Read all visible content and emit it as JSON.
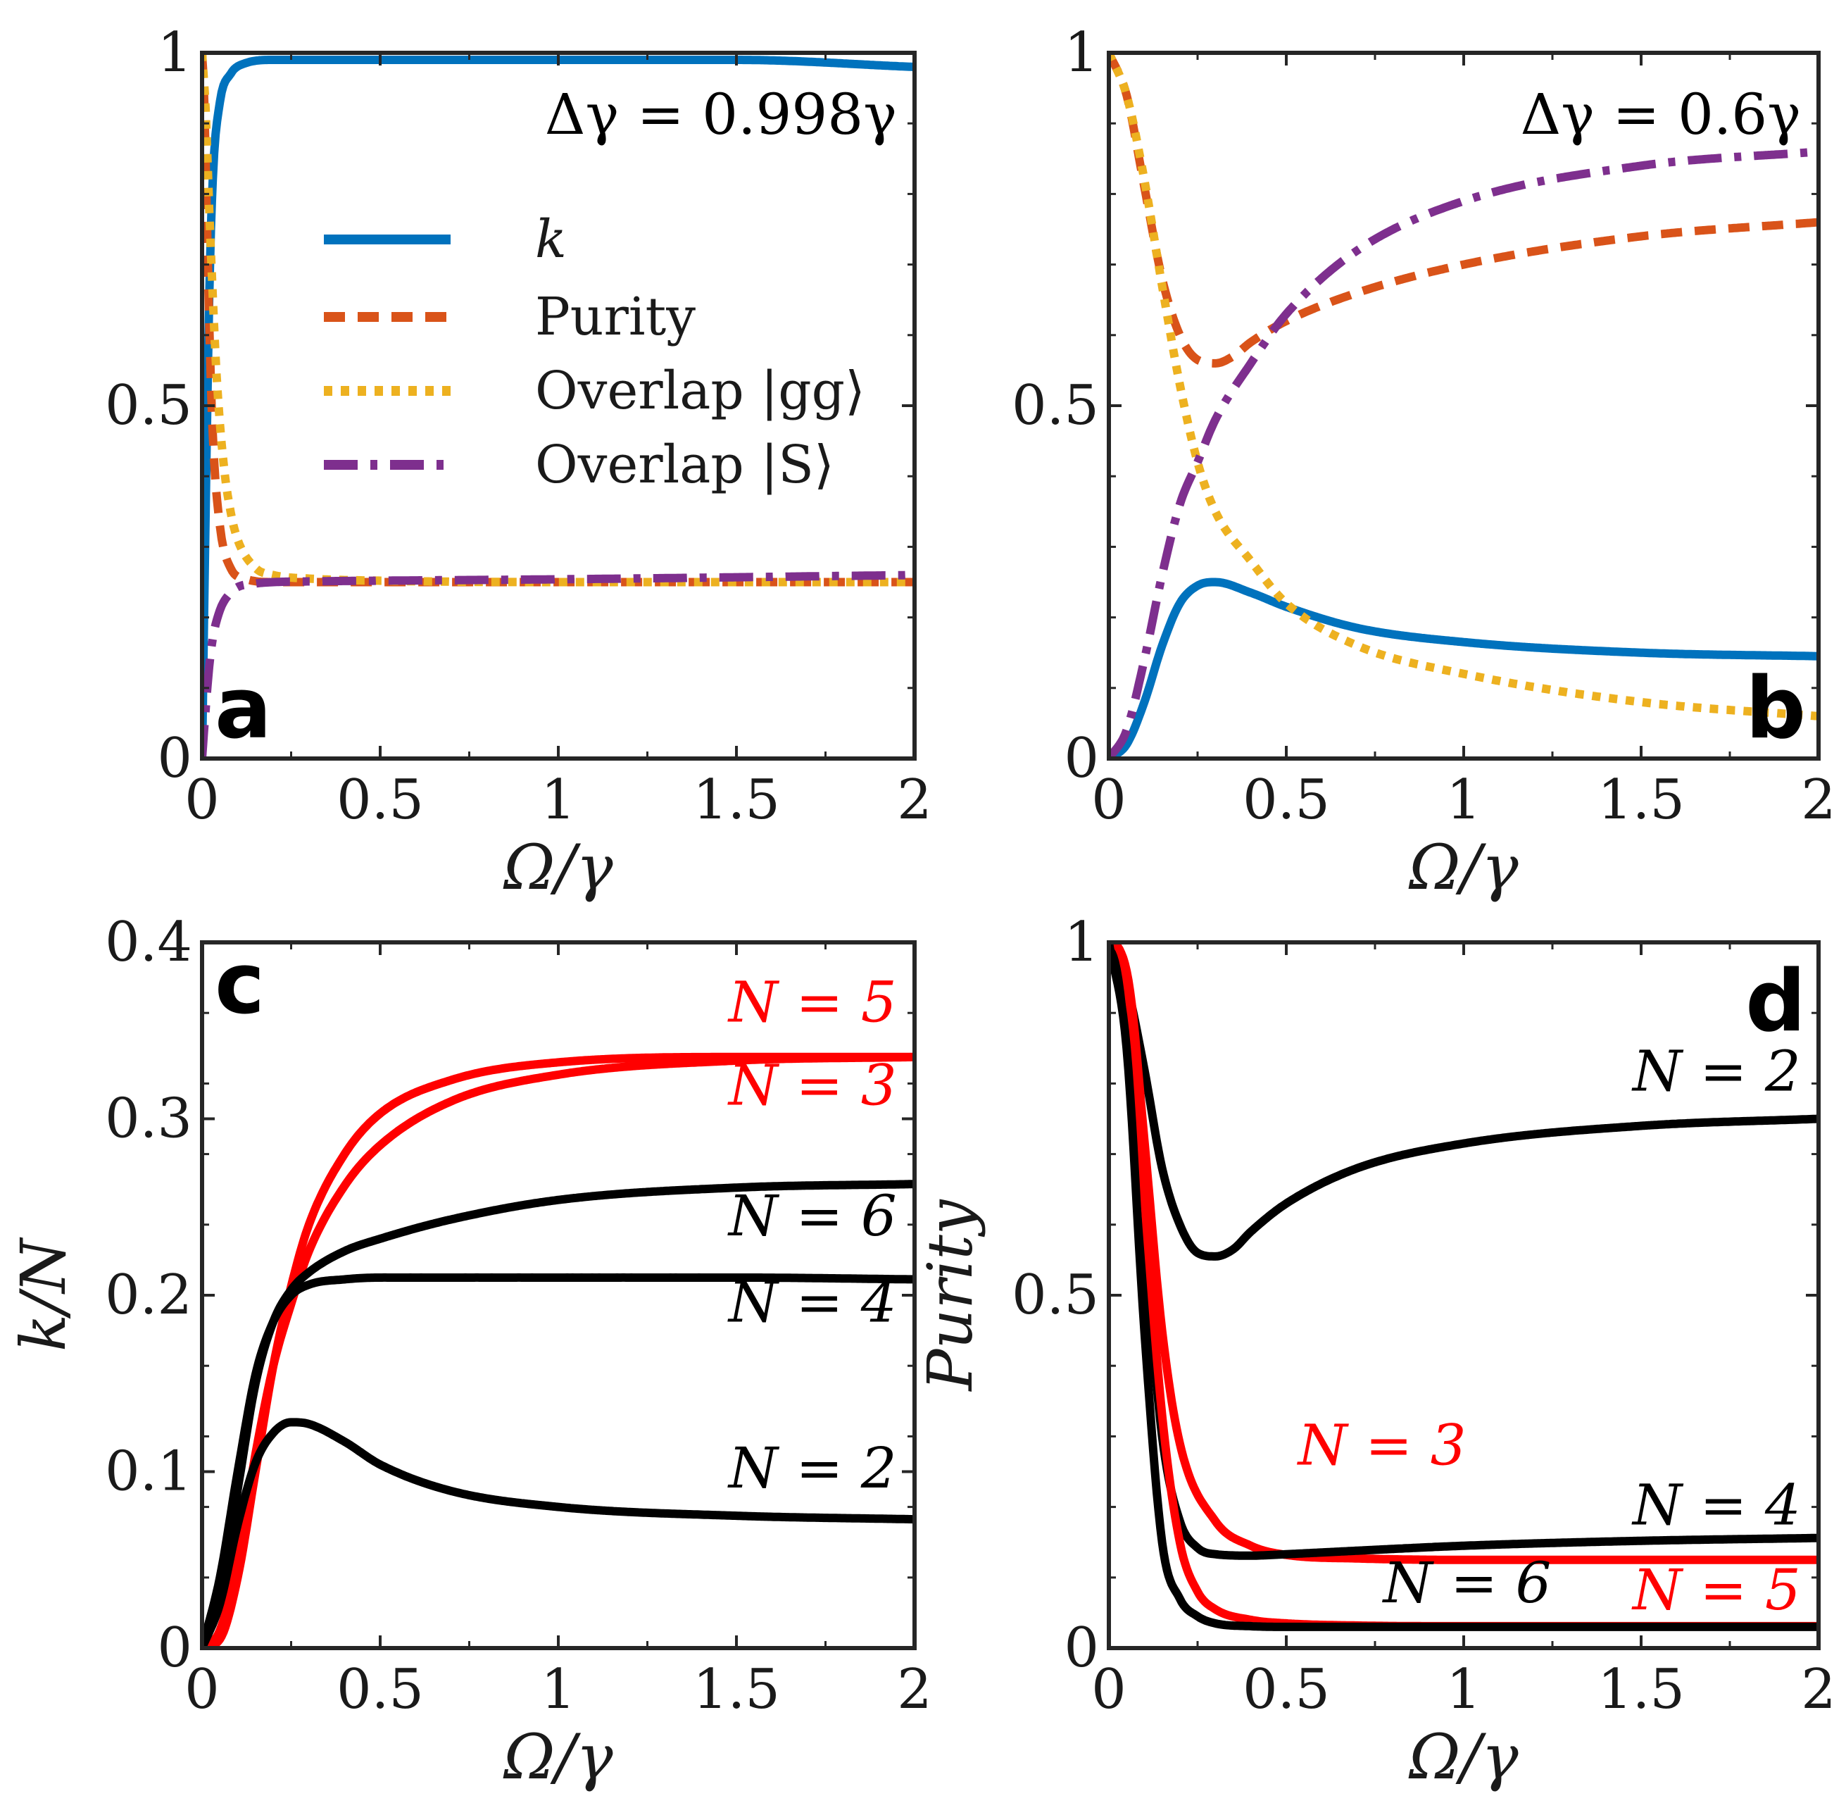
{
  "colors": {
    "blue": "#0072BD",
    "orange": "#D95319",
    "yellow": "#EDB120",
    "purple": "#7E2F8E",
    "black": "#000000",
    "red": "#FF0000",
    "axis": "#262626"
  },
  "chart_data": [
    {
      "panel": "a",
      "type": "line",
      "annotation": "Δγ = 0.998γ",
      "xlabel": "Ω/γ",
      "ylabel": "",
      "xlim": [
        0,
        2
      ],
      "ylim": [
        0,
        1
      ],
      "xticks": [
        "0",
        "0.5",
        "1",
        "1.5",
        "2"
      ],
      "yticks": [
        "0",
        "0.5",
        "1"
      ],
      "legend": [
        "k",
        "Purity",
        "Overlap |gg⟩",
        "Overlap |S⟩"
      ],
      "series": [
        {
          "name": "k",
          "color": "blue",
          "style": "solid",
          "x": [
            0,
            0.01,
            0.02,
            0.03,
            0.05,
            0.08,
            0.12,
            0.2,
            0.3,
            0.5,
            1.0,
            1.5,
            2.0
          ],
          "y": [
            0,
            0.35,
            0.65,
            0.82,
            0.93,
            0.97,
            0.985,
            0.99,
            0.99,
            0.99,
            0.99,
            0.99,
            0.98
          ]
        },
        {
          "name": "Purity",
          "color": "orange",
          "style": "dashed",
          "x": [
            0,
            0.005,
            0.01,
            0.02,
            0.03,
            0.05,
            0.08,
            0.12,
            0.2,
            0.5,
            1.0,
            1.5,
            2.0
          ],
          "y": [
            1,
            0.95,
            0.85,
            0.62,
            0.46,
            0.33,
            0.27,
            0.255,
            0.25,
            0.25,
            0.25,
            0.25,
            0.25
          ]
        },
        {
          "name": "Overlap |gg⟩",
          "color": "yellow",
          "style": "dotted",
          "x": [
            0,
            0.01,
            0.02,
            0.04,
            0.06,
            0.08,
            0.1,
            0.15,
            0.2,
            0.3,
            0.5,
            1.0,
            2.0
          ],
          "y": [
            1,
            0.92,
            0.78,
            0.55,
            0.42,
            0.35,
            0.31,
            0.27,
            0.26,
            0.255,
            0.252,
            0.25,
            0.25
          ]
        },
        {
          "name": "Overlap |S⟩",
          "color": "purple",
          "style": "dashdot",
          "x": [
            0,
            0.01,
            0.02,
            0.03,
            0.05,
            0.08,
            0.1,
            0.15,
            0.2,
            0.3,
            0.5,
            1.0,
            2.0
          ],
          "y": [
            0,
            0.07,
            0.13,
            0.17,
            0.21,
            0.235,
            0.243,
            0.248,
            0.25,
            0.251,
            0.252,
            0.254,
            0.26
          ]
        }
      ]
    },
    {
      "panel": "b",
      "type": "line",
      "annotation": "Δγ = 0.6γ",
      "xlabel": "Ω/γ",
      "ylabel": "",
      "xlim": [
        0,
        2
      ],
      "ylim": [
        0,
        1
      ],
      "xticks": [
        "0",
        "0.5",
        "1",
        "1.5",
        "2"
      ],
      "yticks": [
        "0",
        "0.5",
        "1"
      ],
      "series": [
        {
          "name": "k",
          "color": "blue",
          "style": "solid",
          "x": [
            0,
            0.05,
            0.1,
            0.15,
            0.2,
            0.25,
            0.3,
            0.4,
            0.5,
            0.7,
            1.0,
            1.5,
            2.0
          ],
          "y": [
            0,
            0.02,
            0.08,
            0.16,
            0.22,
            0.245,
            0.25,
            0.235,
            0.215,
            0.185,
            0.165,
            0.15,
            0.145
          ]
        },
        {
          "name": "Purity",
          "color": "orange",
          "style": "dashed",
          "x": [
            0,
            0.05,
            0.1,
            0.15,
            0.2,
            0.25,
            0.3,
            0.35,
            0.4,
            0.5,
            0.7,
            1.0,
            1.5,
            2.0
          ],
          "y": [
            1,
            0.94,
            0.81,
            0.68,
            0.6,
            0.565,
            0.56,
            0.57,
            0.59,
            0.62,
            0.66,
            0.7,
            0.74,
            0.76
          ]
        },
        {
          "name": "Overlap |gg⟩",
          "color": "yellow",
          "style": "dotted",
          "x": [
            0,
            0.05,
            0.1,
            0.15,
            0.2,
            0.25,
            0.3,
            0.4,
            0.5,
            0.7,
            1.0,
            1.5,
            2.0
          ],
          "y": [
            1,
            0.94,
            0.82,
            0.67,
            0.53,
            0.42,
            0.35,
            0.28,
            0.22,
            0.16,
            0.12,
            0.08,
            0.06
          ]
        },
        {
          "name": "Overlap |S⟩",
          "color": "purple",
          "style": "dashdot",
          "x": [
            0,
            0.05,
            0.1,
            0.15,
            0.2,
            0.25,
            0.3,
            0.4,
            0.5,
            0.7,
            1.0,
            1.5,
            2.0
          ],
          "y": [
            0,
            0.04,
            0.14,
            0.26,
            0.36,
            0.42,
            0.48,
            0.56,
            0.63,
            0.72,
            0.79,
            0.84,
            0.86
          ]
        }
      ]
    },
    {
      "panel": "c",
      "type": "line",
      "xlabel": "Ω/γ",
      "ylabel": "k/N",
      "xlim": [
        0,
        2
      ],
      "ylim": [
        0,
        0.4
      ],
      "xticks": [
        "0",
        "0.5",
        "1",
        "1.5",
        "2"
      ],
      "yticks": [
        "0",
        "0.1",
        "0.2",
        "0.3",
        "0.4"
      ],
      "series": [
        {
          "name": "N = 5",
          "color": "red",
          "x": [
            0,
            0.05,
            0.1,
            0.15,
            0.2,
            0.25,
            0.3,
            0.4,
            0.5,
            0.7,
            1.0,
            1.5,
            2.0
          ],
          "y": [
            0,
            0.005,
            0.04,
            0.1,
            0.16,
            0.205,
            0.24,
            0.28,
            0.303,
            0.322,
            0.332,
            0.335,
            0.335
          ]
        },
        {
          "name": "N = 3",
          "color": "red",
          "x": [
            0,
            0.05,
            0.1,
            0.15,
            0.2,
            0.25,
            0.3,
            0.4,
            0.5,
            0.7,
            1.0,
            1.5,
            2.0
          ],
          "y": [
            0,
            0.01,
            0.05,
            0.11,
            0.16,
            0.195,
            0.225,
            0.262,
            0.285,
            0.31,
            0.325,
            0.333,
            0.335
          ]
        },
        {
          "name": "N = 6",
          "color": "black",
          "x": [
            0,
            0.05,
            0.1,
            0.15,
            0.2,
            0.25,
            0.3,
            0.4,
            0.5,
            0.7,
            1.0,
            1.5,
            2.0
          ],
          "y": [
            0,
            0.03,
            0.09,
            0.15,
            0.185,
            0.203,
            0.213,
            0.225,
            0.232,
            0.243,
            0.254,
            0.261,
            0.263
          ]
        },
        {
          "name": "N = 4",
          "color": "black",
          "x": [
            0,
            0.05,
            0.1,
            0.15,
            0.2,
            0.25,
            0.3,
            0.4,
            0.5,
            0.7,
            1.0,
            1.5,
            2.0
          ],
          "y": [
            0,
            0.04,
            0.1,
            0.155,
            0.185,
            0.2,
            0.206,
            0.209,
            0.21,
            0.21,
            0.21,
            0.21,
            0.209
          ]
        },
        {
          "name": "N = 2",
          "color": "black",
          "x": [
            0,
            0.05,
            0.1,
            0.15,
            0.2,
            0.25,
            0.3,
            0.4,
            0.5,
            0.7,
            1.0,
            1.5,
            2.0
          ],
          "y": [
            0,
            0.025,
            0.07,
            0.105,
            0.122,
            0.128,
            0.127,
            0.117,
            0.104,
            0.089,
            0.08,
            0.075,
            0.073
          ]
        }
      ],
      "labels": [
        {
          "text": "N = 5",
          "color": "red",
          "x": 1.95,
          "y": 0.355
        },
        {
          "text": "N = 3",
          "color": "red",
          "x": 1.95,
          "y": 0.308
        },
        {
          "text": "N = 6",
          "color": "black",
          "x": 1.95,
          "y": 0.234
        },
        {
          "text": "N = 4",
          "color": "black",
          "x": 1.95,
          "y": 0.185
        },
        {
          "text": "N = 2",
          "color": "black",
          "x": 1.95,
          "y": 0.091
        }
      ]
    },
    {
      "panel": "d",
      "type": "line",
      "xlabel": "Ω/γ",
      "ylabel": "Purity",
      "xlim": [
        0,
        2
      ],
      "ylim": [
        0,
        1
      ],
      "xticks": [
        "0",
        "0.5",
        "1",
        "1.5",
        "2"
      ],
      "yticks": [
        "0",
        "0.5",
        "1"
      ],
      "series": [
        {
          "name": "N = 2",
          "color": "black",
          "x": [
            0,
            0.05,
            0.1,
            0.15,
            0.2,
            0.25,
            0.3,
            0.35,
            0.4,
            0.5,
            0.7,
            1.0,
            1.5,
            2.0
          ],
          "y": [
            1,
            0.94,
            0.82,
            0.68,
            0.6,
            0.56,
            0.555,
            0.565,
            0.59,
            0.63,
            0.68,
            0.715,
            0.74,
            0.75
          ]
        },
        {
          "name": "N = 3",
          "color": "red",
          "x": [
            0,
            0.03,
            0.06,
            0.1,
            0.15,
            0.2,
            0.3,
            0.4,
            0.5,
            0.7,
            1.0,
            1.5,
            2.0
          ],
          "y": [
            1,
            0.99,
            0.93,
            0.72,
            0.45,
            0.29,
            0.18,
            0.145,
            0.132,
            0.127,
            0.125,
            0.125,
            0.125
          ]
        },
        {
          "name": "N = 4",
          "color": "black",
          "x": [
            0,
            0.05,
            0.1,
            0.15,
            0.2,
            0.25,
            0.3,
            0.4,
            0.5,
            0.7,
            1.0,
            1.5,
            2.0
          ],
          "y": [
            1,
            0.9,
            0.58,
            0.3,
            0.18,
            0.142,
            0.133,
            0.131,
            0.133,
            0.138,
            0.145,
            0.152,
            0.156
          ]
        },
        {
          "name": "N = 5",
          "color": "red",
          "x": [
            0,
            0.03,
            0.06,
            0.1,
            0.15,
            0.2,
            0.25,
            0.3,
            0.4,
            0.5,
            0.7,
            1.0,
            1.5,
            2.0
          ],
          "y": [
            1,
            0.99,
            0.91,
            0.64,
            0.33,
            0.15,
            0.08,
            0.055,
            0.04,
            0.035,
            0.032,
            0.031,
            0.031,
            0.031
          ]
        },
        {
          "name": "N = 6",
          "color": "black",
          "x": [
            0,
            0.05,
            0.1,
            0.15,
            0.2,
            0.25,
            0.3,
            0.4,
            0.5,
            0.7,
            1.0,
            1.5,
            2.0
          ],
          "y": [
            1,
            0.85,
            0.45,
            0.15,
            0.07,
            0.045,
            0.035,
            0.031,
            0.03,
            0.03,
            0.03,
            0.03,
            0.03
          ]
        }
      ],
      "labels": [
        {
          "text": "N = 2",
          "color": "black",
          "x": 1.95,
          "y": 0.79
        },
        {
          "text": "N = 3",
          "color": "red",
          "x": 0.77,
          "y": 0.26
        },
        {
          "text": "N = 4",
          "color": "black",
          "x": 1.95,
          "y": 0.175
        },
        {
          "text": "N = 6",
          "color": "black",
          "x": 1.01,
          "y": 0.065
        },
        {
          "text": "N = 5",
          "color": "red",
          "x": 1.95,
          "y": 0.055
        }
      ]
    }
  ]
}
